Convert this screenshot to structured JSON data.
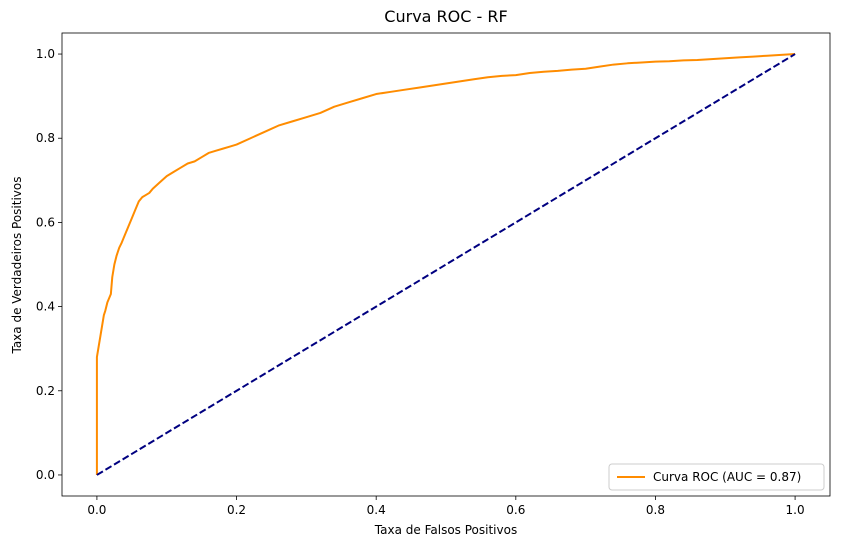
{
  "chart_data": {
    "type": "line",
    "title": "Curva ROC - RF",
    "xlabel": "Taxa de Falsos Positivos",
    "ylabel": "Taxa de Verdadeiros Positivos",
    "xlim": [
      -0.05,
      1.05
    ],
    "ylim": [
      -0.05,
      1.05
    ],
    "xticks": [
      0.0,
      0.2,
      0.4,
      0.6,
      0.8,
      1.0
    ],
    "yticks": [
      0.0,
      0.2,
      0.4,
      0.6,
      0.8,
      1.0
    ],
    "xtick_labels": [
      "0.0",
      "0.2",
      "0.4",
      "0.6",
      "0.8",
      "1.0"
    ],
    "ytick_labels": [
      "0.0",
      "0.2",
      "0.4",
      "0.6",
      "0.8",
      "1.0"
    ],
    "grid": false,
    "legend_position": "bottom-right",
    "series": [
      {
        "name": "Curva ROC (AUC = 0.87)",
        "color": "#ff8c00",
        "style": "solid",
        "x": [
          0.0,
          0.0,
          0.003,
          0.005,
          0.008,
          0.01,
          0.012,
          0.015,
          0.02,
          0.022,
          0.025,
          0.028,
          0.03,
          0.032,
          0.035,
          0.04,
          0.045,
          0.05,
          0.055,
          0.06,
          0.065,
          0.07,
          0.075,
          0.08,
          0.09,
          0.1,
          0.11,
          0.12,
          0.13,
          0.14,
          0.15,
          0.16,
          0.17,
          0.18,
          0.19,
          0.2,
          0.22,
          0.24,
          0.26,
          0.28,
          0.3,
          0.32,
          0.34,
          0.36,
          0.38,
          0.4,
          0.42,
          0.44,
          0.46,
          0.48,
          0.5,
          0.52,
          0.54,
          0.56,
          0.58,
          0.6,
          0.62,
          0.64,
          0.66,
          0.68,
          0.7,
          0.72,
          0.74,
          0.76,
          0.78,
          0.8,
          0.82,
          0.84,
          0.86,
          0.88,
          0.9,
          0.92,
          0.94,
          0.96,
          0.98,
          1.0
        ],
        "y": [
          0.0,
          0.28,
          0.31,
          0.33,
          0.36,
          0.38,
          0.39,
          0.41,
          0.43,
          0.47,
          0.5,
          0.52,
          0.53,
          0.54,
          0.55,
          0.57,
          0.59,
          0.61,
          0.63,
          0.65,
          0.66,
          0.665,
          0.67,
          0.68,
          0.695,
          0.71,
          0.72,
          0.73,
          0.74,
          0.745,
          0.755,
          0.765,
          0.77,
          0.775,
          0.78,
          0.785,
          0.8,
          0.815,
          0.83,
          0.84,
          0.85,
          0.86,
          0.875,
          0.885,
          0.895,
          0.905,
          0.91,
          0.915,
          0.92,
          0.925,
          0.93,
          0.935,
          0.94,
          0.945,
          0.948,
          0.95,
          0.955,
          0.958,
          0.96,
          0.963,
          0.965,
          0.97,
          0.975,
          0.978,
          0.98,
          0.982,
          0.983,
          0.985,
          0.986,
          0.988,
          0.99,
          0.992,
          0.994,
          0.996,
          0.998,
          1.0
        ]
      },
      {
        "name": "",
        "color": "#000080",
        "style": "dashed",
        "x": [
          0.0,
          1.0
        ],
        "y": [
          0.0,
          1.0
        ]
      }
    ]
  }
}
